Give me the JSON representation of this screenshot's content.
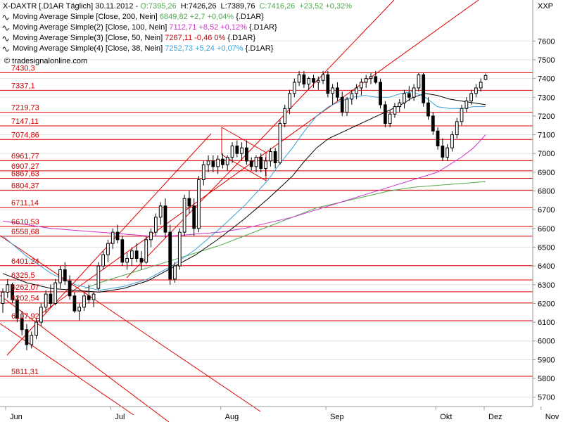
{
  "chart_data": {
    "type": "candlestick",
    "instrument": "X-DAXTR [.D1AR  Täglich] 30.11.2012",
    "ohlc_label": {
      "open": "O:7395,26",
      "high": "H:7426,26",
      "low": "L:7389,76",
      "close": "C:7416,26",
      "change": "+23,52 +0,32%"
    },
    "source": "© tradesignalonline.com",
    "right_axis_label": "XXP",
    "ylim": [
      5650,
      7800
    ],
    "yticks": [
      5700,
      5800,
      5900,
      6000,
      6100,
      6200,
      6300,
      6400,
      6500,
      6600,
      6700,
      6800,
      6900,
      7000,
      7100,
      7200,
      7300,
      7400,
      7500,
      7600
    ],
    "x_month_labels": [
      "Jun",
      "Jul",
      "Aug",
      "Sep",
      "Okt",
      "Nov",
      "Dez"
    ],
    "legend": [
      {
        "icon": "wave-icon",
        "text": "Moving Average Simple [Close, 200, Nein]",
        "value": "6849,82",
        "change": "+2,7 +0,04%",
        "suffix": "{.D1AR}",
        "color": "#4fa84f",
        "change_color": "#4fa84f"
      },
      {
        "icon": "wave-icon",
        "text": "Moving Average Simple(2) [Close, 100, Nein]",
        "value": "7112,71",
        "change": "+8,52 +0,12%",
        "suffix": "{.D1AR}",
        "color": "#cc33cc",
        "change_color": "#cc33cc"
      },
      {
        "icon": "wave-icon",
        "text": "Moving Average Simple(3) [Close, 50, Nein]",
        "value": "7267,11",
        "change": "-0,46 0%",
        "suffix": "{.D1AR}",
        "color": "#000000",
        "change_color": "#cc0000"
      },
      {
        "icon": "wave-icon",
        "text": "Moving Average Simple(4) [Close, 38, Nein]",
        "value": "7252,73",
        "change": "+5,24 +0,07%",
        "suffix": "{.D1AR}",
        "color": "#3aa0d8",
        "change_color": "#3aa0d8"
      }
    ],
    "horizontal_levels": [
      "7430,3",
      "7337,1",
      "7219,73",
      "7147,11",
      "7074,86",
      "6961,77",
      "6907,27",
      "6867,63",
      "6804,37",
      "6711,14",
      "6610,53",
      "6558,68",
      "6401,24",
      "6325,5",
      "6262,07",
      "6202,54",
      "6107,92",
      "5811,31"
    ],
    "candles": [
      [
        6200,
        6280,
        6150,
        6260
      ],
      [
        6260,
        6330,
        6230,
        6300
      ],
      [
        6300,
        6310,
        6200,
        6220
      ],
      [
        6220,
        6240,
        6100,
        6120
      ],
      [
        6120,
        6160,
        6030,
        6060
      ],
      [
        6060,
        6090,
        5950,
        5980
      ],
      [
        5980,
        6050,
        5960,
        6030
      ],
      [
        6030,
        6120,
        6010,
        6100
      ],
      [
        6100,
        6200,
        6080,
        6180
      ],
      [
        6180,
        6270,
        6150,
        6250
      ],
      [
        6250,
        6300,
        6180,
        6200
      ],
      [
        6200,
        6330,
        6190,
        6310
      ],
      [
        6310,
        6400,
        6280,
        6380
      ],
      [
        6380,
        6420,
        6300,
        6320
      ],
      [
        6320,
        6350,
        6220,
        6240
      ],
      [
        6240,
        6260,
        6150,
        6160
      ],
      [
        6160,
        6200,
        6110,
        6180
      ],
      [
        6180,
        6260,
        6160,
        6240
      ],
      [
        6240,
        6300,
        6200,
        6220
      ],
      [
        6220,
        6260,
        6180,
        6250
      ],
      [
        6280,
        6420,
        6270,
        6400
      ],
      [
        6400,
        6480,
        6380,
        6460
      ],
      [
        6460,
        6540,
        6420,
        6520
      ],
      [
        6520,
        6600,
        6490,
        6580
      ],
      [
        6580,
        6620,
        6520,
        6540
      ],
      [
        6540,
        6560,
        6400,
        6420
      ],
      [
        6420,
        6470,
        6380,
        6440
      ],
      [
        6440,
        6500,
        6400,
        6480
      ],
      [
        6480,
        6520,
        6420,
        6440
      ],
      [
        6440,
        6480,
        6380,
        6420
      ],
      [
        6420,
        6560,
        6410,
        6540
      ],
      [
        6540,
        6600,
        6500,
        6580
      ],
      [
        6580,
        6680,
        6560,
        6660
      ],
      [
        6660,
        6740,
        6620,
        6720
      ],
      [
        6720,
        6760,
        6550,
        6580
      ],
      [
        6580,
        6620,
        6300,
        6330
      ],
      [
        6330,
        6420,
        6310,
        6400
      ],
      [
        6400,
        6600,
        6380,
        6580
      ],
      [
        6580,
        6780,
        6560,
        6760
      ],
      [
        6760,
        6800,
        6680,
        6720
      ],
      [
        6720,
        6760,
        6560,
        6600
      ],
      [
        6600,
        6880,
        6580,
        6860
      ],
      [
        6860,
        6960,
        6830,
        6940
      ],
      [
        6940,
        6990,
        6900,
        6960
      ],
      [
        6960,
        6990,
        6900,
        6930
      ],
      [
        6930,
        6990,
        6890,
        6970
      ],
      [
        6970,
        7000,
        6920,
        6940
      ],
      [
        6940,
        6990,
        6910,
        6980
      ],
      [
        6980,
        7060,
        6950,
        7040
      ],
      [
        7040,
        7070,
        6980,
        7000
      ],
      [
        7000,
        7060,
        6960,
        7030
      ],
      [
        7030,
        7070,
        6940,
        6960
      ],
      [
        6960,
        6980,
        6910,
        6930
      ],
      [
        6930,
        6990,
        6900,
        6980
      ],
      [
        6980,
        7000,
        6900,
        6920
      ],
      [
        6920,
        6980,
        6880,
        6960
      ],
      [
        6960,
        7030,
        6930,
        7010
      ],
      [
        7010,
        7030,
        6920,
        6950
      ],
      [
        6950,
        7180,
        6940,
        7160
      ],
      [
        7160,
        7260,
        7140,
        7240
      ],
      [
        7240,
        7340,
        7210,
        7320
      ],
      [
        7320,
        7400,
        7300,
        7380
      ],
      [
        7380,
        7440,
        7360,
        7420
      ],
      [
        7420,
        7440,
        7350,
        7370
      ],
      [
        7370,
        7410,
        7340,
        7400
      ],
      [
        7400,
        7420,
        7350,
        7380
      ],
      [
        7380,
        7410,
        7340,
        7390
      ],
      [
        7390,
        7440,
        7370,
        7420
      ],
      [
        7420,
        7440,
        7300,
        7320
      ],
      [
        7320,
        7370,
        7260,
        7350
      ],
      [
        7350,
        7380,
        7280,
        7300
      ],
      [
        7300,
        7330,
        7200,
        7220
      ],
      [
        7220,
        7300,
        7200,
        7290
      ],
      [
        7290,
        7340,
        7260,
        7320
      ],
      [
        7320,
        7370,
        7290,
        7350
      ],
      [
        7350,
        7400,
        7310,
        7380
      ],
      [
        7380,
        7420,
        7350,
        7400
      ],
      [
        7400,
        7430,
        7370,
        7410
      ],
      [
        7410,
        7440,
        7370,
        7380
      ],
      [
        7380,
        7400,
        7240,
        7260
      ],
      [
        7260,
        7280,
        7140,
        7160
      ],
      [
        7160,
        7230,
        7140,
        7210
      ],
      [
        7210,
        7270,
        7190,
        7250
      ],
      [
        7250,
        7290,
        7220,
        7270
      ],
      [
        7270,
        7340,
        7240,
        7320
      ],
      [
        7320,
        7360,
        7280,
        7300
      ],
      [
        7300,
        7370,
        7280,
        7350
      ],
      [
        7350,
        7430,
        7330,
        7420
      ],
      [
        7420,
        7430,
        7250,
        7270
      ],
      [
        7270,
        7300,
        7180,
        7200
      ],
      [
        7200,
        7220,
        7100,
        7120
      ],
      [
        7120,
        7140,
        7020,
        7040
      ],
      [
        7040,
        7080,
        6960,
        6980
      ],
      [
        6980,
        7050,
        6960,
        7030
      ],
      [
        7030,
        7120,
        7010,
        7100
      ],
      [
        7100,
        7190,
        7080,
        7170
      ],
      [
        7170,
        7260,
        7150,
        7240
      ],
      [
        7240,
        7300,
        7220,
        7280
      ],
      [
        7280,
        7340,
        7260,
        7320
      ],
      [
        7320,
        7370,
        7300,
        7350
      ],
      [
        7350,
        7400,
        7330,
        7380
      ],
      [
        7395,
        7426,
        7390,
        7416
      ]
    ],
    "ma": {
      "ma200": {
        "color": "#4fa84f",
        "values": [
          [
            34,
            6280
          ],
          [
            40,
            6310
          ],
          [
            50,
            6350
          ],
          [
            60,
            6390
          ],
          [
            70,
            6430
          ],
          [
            80,
            6470
          ],
          [
            90,
            6510
          ],
          [
            100,
            6560
          ],
          [
            110,
            6610
          ],
          [
            120,
            6660
          ],
          [
            130,
            6710
          ],
          [
            140,
            6740
          ],
          [
            150,
            6770
          ],
          [
            160,
            6800
          ],
          [
            170,
            6820
          ],
          [
            180,
            6830
          ],
          [
            190,
            6840
          ],
          [
            200,
            6850
          ]
        ]
      },
      "ma100": {
        "color": "#cc33cc",
        "values": [
          [
            0,
            6640
          ],
          [
            10,
            6620
          ],
          [
            20,
            6600
          ],
          [
            30,
            6590
          ],
          [
            40,
            6580
          ],
          [
            50,
            6570
          ],
          [
            60,
            6560
          ],
          [
            70,
            6560
          ],
          [
            80,
            6570
          ],
          [
            90,
            6580
          ],
          [
            100,
            6600
          ],
          [
            110,
            6630
          ],
          [
            120,
            6660
          ],
          [
            130,
            6700
          ],
          [
            140,
            6740
          ],
          [
            150,
            6780
          ],
          [
            160,
            6820
          ],
          [
            170,
            6860
          ],
          [
            180,
            6900
          ],
          [
            185,
            6940
          ],
          [
            190,
            6980
          ],
          [
            195,
            7030
          ],
          [
            200,
            7100
          ]
        ]
      },
      "ma50": {
        "color": "#000000",
        "values": [
          [
            0,
            6360
          ],
          [
            10,
            6310
          ],
          [
            20,
            6280
          ],
          [
            30,
            6270
          ],
          [
            40,
            6260
          ],
          [
            50,
            6280
          ],
          [
            60,
            6320
          ],
          [
            70,
            6390
          ],
          [
            80,
            6460
          ],
          [
            90,
            6550
          ],
          [
            100,
            6650
          ],
          [
            110,
            6760
          ],
          [
            115,
            6820
          ],
          [
            120,
            6880
          ],
          [
            125,
            6960
          ],
          [
            130,
            7030
          ],
          [
            135,
            7080
          ],
          [
            140,
            7110
          ],
          [
            145,
            7140
          ],
          [
            150,
            7170
          ],
          [
            155,
            7200
          ],
          [
            160,
            7230
          ],
          [
            165,
            7260
          ],
          [
            170,
            7300
          ],
          [
            175,
            7320
          ],
          [
            180,
            7310
          ],
          [
            185,
            7290
          ],
          [
            190,
            7280
          ],
          [
            195,
            7270
          ],
          [
            200,
            7260
          ]
        ]
      },
      "ma38": {
        "color": "#3aa0d8",
        "values": [
          [
            0,
            6560
          ],
          [
            10,
            6450
          ],
          [
            20,
            6360
          ],
          [
            30,
            6300
          ],
          [
            40,
            6270
          ],
          [
            50,
            6290
          ],
          [
            60,
            6330
          ],
          [
            70,
            6400
          ],
          [
            80,
            6490
          ],
          [
            90,
            6600
          ],
          [
            100,
            6720
          ],
          [
            110,
            6860
          ],
          [
            115,
            6950
          ],
          [
            120,
            7030
          ],
          [
            125,
            7120
          ],
          [
            130,
            7200
          ],
          [
            135,
            7250
          ],
          [
            140,
            7280
          ],
          [
            145,
            7300
          ],
          [
            150,
            7310
          ],
          [
            155,
            7300
          ],
          [
            160,
            7300
          ],
          [
            165,
            7320
          ],
          [
            170,
            7330
          ],
          [
            175,
            7300
          ],
          [
            180,
            7250
          ],
          [
            185,
            7240
          ],
          [
            190,
            7240
          ],
          [
            195,
            7250
          ],
          [
            200,
            7250
          ]
        ]
      }
    }
  }
}
